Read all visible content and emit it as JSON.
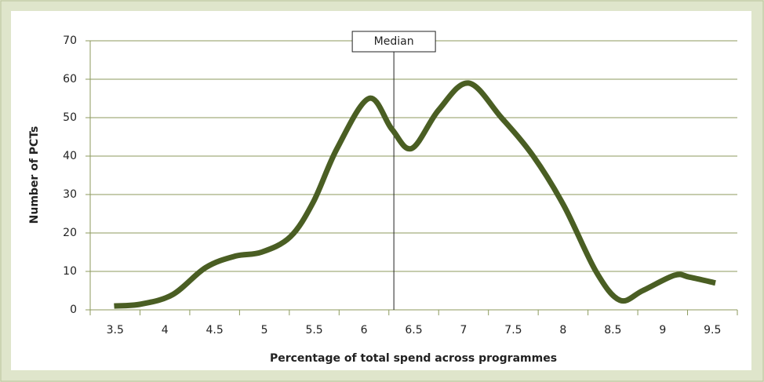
{
  "chart_data": {
    "type": "line",
    "xlabel": "Percentage of total spend across programmes",
    "ylabel": "Number of PCTs",
    "xlim": [
      3.25,
      9.75
    ],
    "ylim": [
      0,
      70
    ],
    "xticks": [
      3.5,
      4,
      4.5,
      5,
      5.5,
      6,
      6.5,
      7,
      7.5,
      8,
      8.5,
      9,
      9.5
    ],
    "yticks": [
      0,
      10,
      20,
      30,
      40,
      50,
      60,
      70
    ],
    "grid": true,
    "annotation": {
      "label": "Median",
      "x": 6.3
    },
    "series": [
      {
        "color": "#4a5e23",
        "x": [
          3.49,
          3.76,
          4.08,
          4.41,
          4.71,
          4.97,
          5.26,
          5.49,
          5.73,
          6.05,
          6.28,
          6.48,
          6.75,
          7.05,
          7.38,
          7.7,
          8.01,
          8.33,
          8.57,
          8.8,
          9.12,
          9.27,
          9.53
        ],
        "values": [
          1,
          1.5,
          4,
          11,
          14,
          15,
          19,
          28,
          42,
          55,
          47,
          42,
          52,
          59,
          50,
          40,
          27,
          10,
          2.5,
          5,
          9,
          8.5,
          7
        ]
      }
    ]
  }
}
